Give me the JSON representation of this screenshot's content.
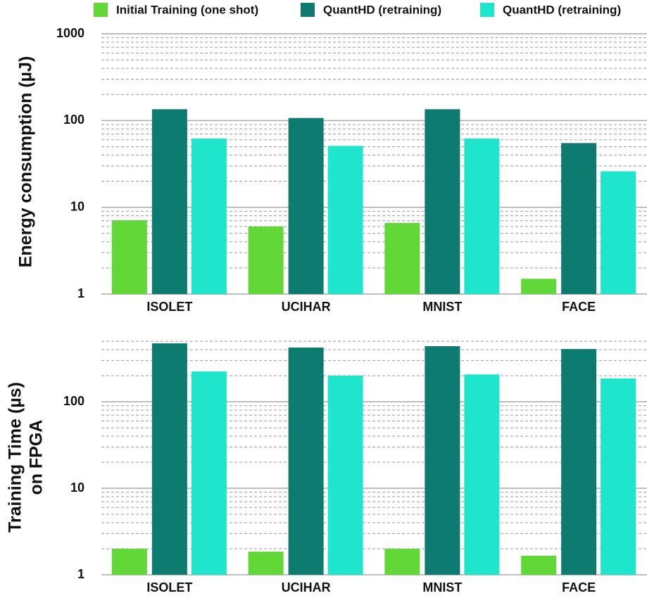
{
  "chart_data": [
    {
      "type": "bar",
      "log_scale": true,
      "grid": true,
      "legend": "top",
      "ylabel": "Energy consumption (µJ)",
      "categories": [
        "ISOLET",
        "UCIHAR",
        "MNIST",
        "FACE"
      ],
      "series": [
        {
          "name": "Initial Training (one shot)",
          "color": "#62d838",
          "values": [
            7.1,
            6.0,
            6.6,
            1.5
          ]
        },
        {
          "name": "QuantHD (retraining)",
          "color": "#0d7b6f",
          "values": [
            135,
            107,
            135,
            55
          ]
        },
        {
          "name": "QuantHD (retraining)",
          "color": "#1ee5cc",
          "values": [
            62,
            51,
            62,
            26
          ]
        }
      ],
      "ylim": [
        1,
        1000
      ],
      "yticks": [
        1,
        10,
        100,
        1000
      ]
    },
    {
      "type": "bar",
      "log_scale": true,
      "grid": true,
      "ylabel": [
        "Training Time (µs)",
        "on FPGA"
      ],
      "categories": [
        "ISOLET",
        "UCIHAR",
        "MNIST",
        "FACE"
      ],
      "series": [
        {
          "color": "#62d838",
          "values": [
            2.0,
            1.85,
            2.0,
            1.66
          ]
        },
        {
          "color": "#0d7b6f",
          "values": [
            473,
            423,
            439,
            407
          ]
        },
        {
          "color": "#1ee5cc",
          "values": [
            224,
            200,
            207,
            186
          ]
        }
      ],
      "ylim": [
        1,
        520
      ],
      "yticks": [
        1,
        10,
        100
      ]
    }
  ]
}
